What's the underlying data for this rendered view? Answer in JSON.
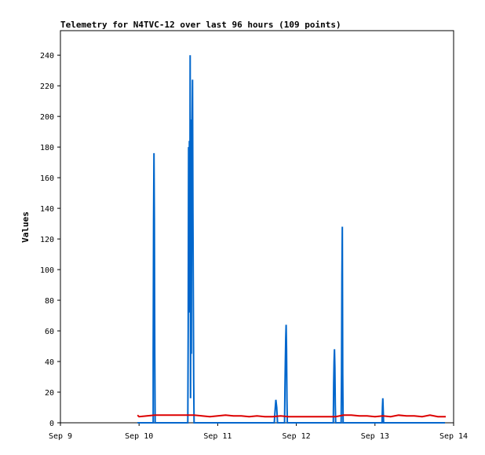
{
  "chart_data": {
    "type": "line",
    "title": "Telemetry for N4TVC-12 over last 96 hours (109 points)",
    "xlabel": "",
    "ylabel": "Values",
    "x_ticks": [
      "Sep 9",
      "Sep 10",
      "Sep 11",
      "Sep 12",
      "Sep 13",
      "Sep 14"
    ],
    "y_ticks": [
      0,
      20,
      40,
      60,
      80,
      100,
      120,
      140,
      160,
      180,
      200,
      220,
      240
    ],
    "xlim_days": [
      0,
      5
    ],
    "ylim": [
      0,
      256
    ],
    "grid": false,
    "legend": "none",
    "colors": {
      "series_blue": "#0066cc",
      "series_red": "#dd0000",
      "axis": "#000000",
      "background": "#ffffff"
    },
    "series": [
      {
        "color": "#0066cc",
        "points": [
          [
            0.98,
            0
          ],
          [
            1.18,
            0
          ],
          [
            1.18,
            45
          ],
          [
            1.185,
            132
          ],
          [
            1.19,
            176
          ],
          [
            1.195,
            132
          ],
          [
            1.2,
            45
          ],
          [
            1.205,
            0
          ],
          [
            1.62,
            0
          ],
          [
            1.625,
            60
          ],
          [
            1.63,
            180
          ],
          [
            1.635,
            92
          ],
          [
            1.64,
            184
          ],
          [
            1.645,
            72
          ],
          [
            1.65,
            240
          ],
          [
            1.655,
            16
          ],
          [
            1.66,
            146
          ],
          [
            1.665,
            45
          ],
          [
            1.67,
            198
          ],
          [
            1.675,
            196
          ],
          [
            1.68,
            224
          ],
          [
            1.685,
            140
          ],
          [
            1.69,
            84
          ],
          [
            1.695,
            28
          ],
          [
            1.7,
            0
          ],
          [
            2.72,
            0
          ],
          [
            2.73,
            8
          ],
          [
            2.74,
            15
          ],
          [
            2.75,
            10
          ],
          [
            2.76,
            0
          ],
          [
            2.85,
            0
          ],
          [
            2.855,
            23
          ],
          [
            2.86,
            40
          ],
          [
            2.865,
            55
          ],
          [
            2.87,
            64
          ],
          [
            2.875,
            48
          ],
          [
            2.88,
            16
          ],
          [
            2.885,
            0
          ],
          [
            3.47,
            0
          ],
          [
            3.475,
            26
          ],
          [
            3.48,
            40
          ],
          [
            3.485,
            48
          ],
          [
            3.49,
            36
          ],
          [
            3.495,
            12
          ],
          [
            3.5,
            0
          ],
          [
            3.57,
            0
          ],
          [
            3.575,
            32
          ],
          [
            3.58,
            96
          ],
          [
            3.585,
            128
          ],
          [
            3.59,
            32
          ],
          [
            3.595,
            0
          ],
          [
            4.09,
            0
          ],
          [
            4.095,
            10
          ],
          [
            4.1,
            16
          ],
          [
            4.105,
            8
          ],
          [
            4.11,
            0
          ],
          [
            4.89,
            0
          ]
        ]
      },
      {
        "color": "#dd0000",
        "points": [
          [
            0.98,
            5
          ],
          [
            1.0,
            4
          ],
          [
            1.1,
            4.5
          ],
          [
            1.2,
            5
          ],
          [
            1.3,
            5
          ],
          [
            1.5,
            5
          ],
          [
            1.6,
            5
          ],
          [
            1.7,
            5
          ],
          [
            1.8,
            4.5
          ],
          [
            1.9,
            4
          ],
          [
            2.0,
            4.5
          ],
          [
            2.1,
            5
          ],
          [
            2.2,
            4.5
          ],
          [
            2.3,
            4.5
          ],
          [
            2.4,
            4
          ],
          [
            2.5,
            4.5
          ],
          [
            2.6,
            4
          ],
          [
            2.7,
            4
          ],
          [
            2.8,
            4.5
          ],
          [
            2.9,
            4
          ],
          [
            3.0,
            4
          ],
          [
            3.1,
            4
          ],
          [
            3.2,
            4
          ],
          [
            3.3,
            4
          ],
          [
            3.4,
            4
          ],
          [
            3.5,
            4
          ],
          [
            3.6,
            5
          ],
          [
            3.7,
            5
          ],
          [
            3.8,
            4.5
          ],
          [
            3.9,
            4.5
          ],
          [
            4.0,
            4
          ],
          [
            4.1,
            4.5
          ],
          [
            4.2,
            4
          ],
          [
            4.3,
            5
          ],
          [
            4.4,
            4.5
          ],
          [
            4.5,
            4.5
          ],
          [
            4.6,
            4
          ],
          [
            4.7,
            5
          ],
          [
            4.8,
            4
          ],
          [
            4.9,
            4
          ]
        ]
      }
    ]
  }
}
